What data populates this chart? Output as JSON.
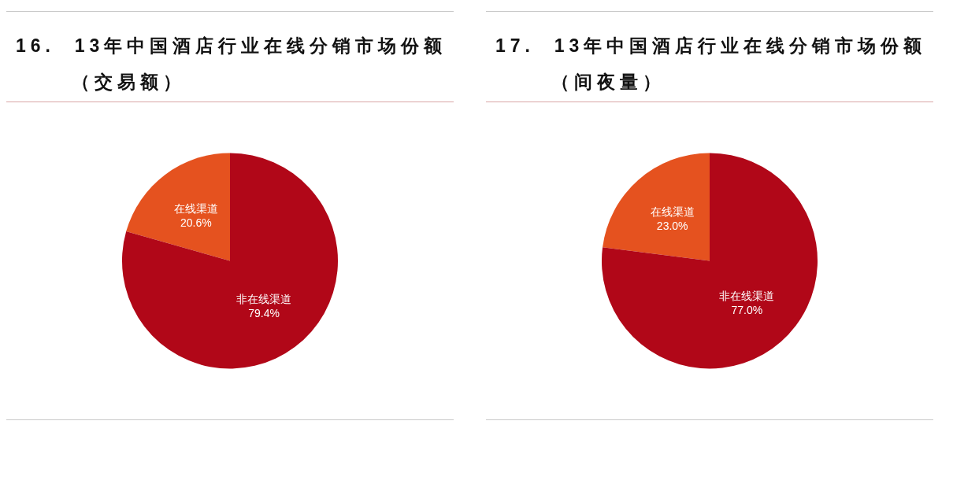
{
  "chart_data": [
    {
      "type": "pie",
      "title": "16.  13年中国酒店行业在线分销市场份额（交易额）",
      "categories": [
        "在线渠道",
        "非在线渠道"
      ],
      "values": [
        20.6,
        79.4
      ],
      "colors": [
        "#e5521f",
        "#b10718"
      ],
      "value_labels": [
        "20.6%",
        "79.4%"
      ]
    },
    {
      "type": "pie",
      "title": "17.  13年中国酒店行业在线分销市场份额（间夜量）",
      "categories": [
        "在线渠道",
        "非在线渠道"
      ],
      "values": [
        23.0,
        77.0
      ],
      "colors": [
        "#e5521f",
        "#b10718"
      ],
      "value_labels": [
        "23.0%",
        "77.0%"
      ]
    }
  ]
}
